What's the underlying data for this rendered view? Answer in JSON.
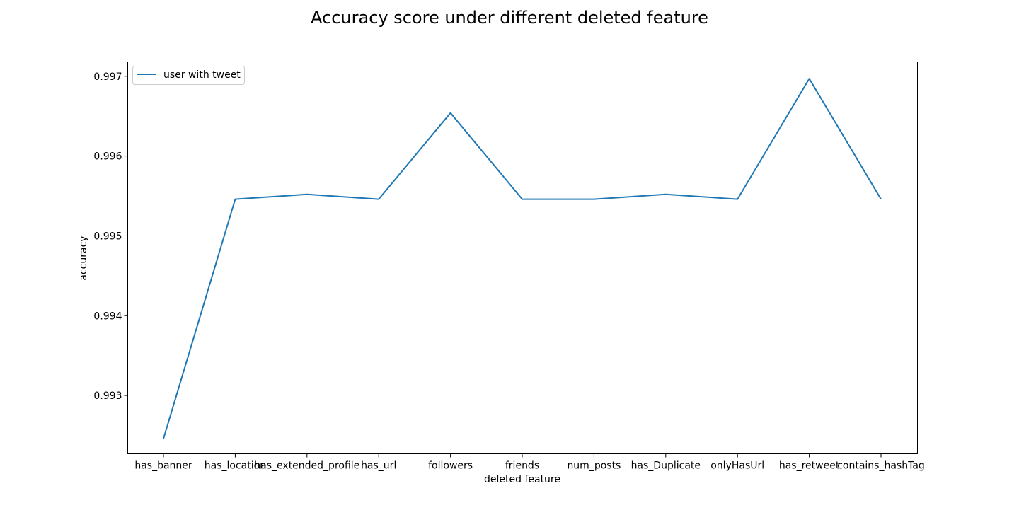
{
  "chart_data": {
    "type": "line",
    "title": "Accuracy score under different deleted feature",
    "xlabel": "deleted feature",
    "ylabel": "accuracy",
    "categories": [
      "has_banner",
      "has_location",
      "has_extended_profile",
      "has_url",
      "followers",
      "friends",
      "num_posts",
      "has_Duplicate",
      "onlyHasUrl",
      "has_retweet",
      "contains_hashTag"
    ],
    "series": [
      {
        "name": "user with tweet",
        "color": "#1f77b4",
        "values": [
          0.99246,
          0.99546,
          0.99552,
          0.99546,
          0.99654,
          0.99546,
          0.99546,
          0.99552,
          0.99546,
          0.99697,
          0.99546
        ]
      }
    ],
    "ylim": [
      0.99227,
      0.99718
    ],
    "yticks": [
      0.993,
      0.994,
      0.995,
      0.996,
      0.997
    ],
    "ytick_labels": [
      "0.993",
      "0.994",
      "0.995",
      "0.996",
      "0.997"
    ],
    "grid": false,
    "legend_position": "upper left"
  }
}
